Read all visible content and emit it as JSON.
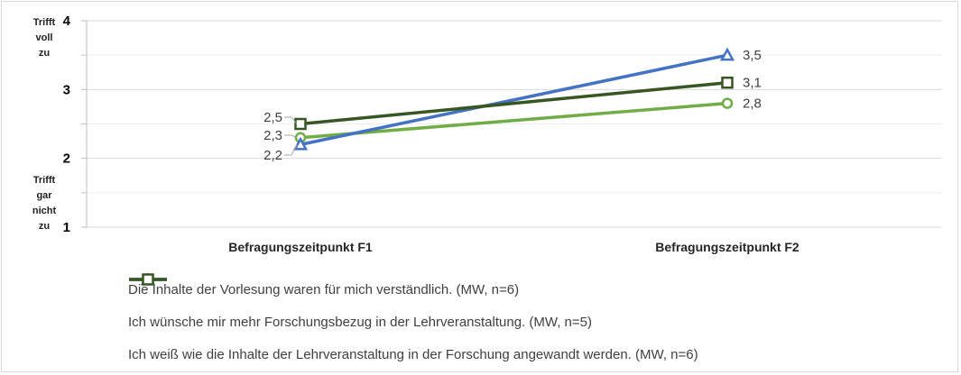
{
  "chart_data": {
    "type": "line",
    "categories": [
      "Befragungszeitpunkt F1",
      "Befragungszeitpunkt F2"
    ],
    "ylim": [
      1,
      4
    ],
    "yticks": [
      1,
      2,
      3,
      4
    ],
    "ytick_labels": [
      "1",
      "2",
      "3",
      "4"
    ],
    "y_top_label": [
      "Trifft",
      "voll",
      "zu"
    ],
    "y_bottom_label": [
      "Trifft",
      "gar",
      "nicht",
      "zu"
    ],
    "grid": "horizontal",
    "legend_position": "bottom",
    "series": [
      {
        "name": "Die Inhalte der Vorlesung waren für mich verständlich. (MW, n=6)",
        "values": [
          2.3,
          2.8
        ],
        "labels": [
          "2,3",
          "2,8"
        ],
        "color": "#70ad47",
        "marker": "circle"
      },
      {
        "name": "Ich wünsche mir mehr Forschungsbezug in der Lehrveranstaltung. (MW, n=5)",
        "values": [
          2.2,
          3.5
        ],
        "labels": [
          "2,2",
          "3,5"
        ],
        "color": "#4472c4",
        "marker": "triangle"
      },
      {
        "name": "Ich weiß wie die Inhalte der Lehrveranstaltung in der Forschung angewandt werden.  (MW, n=6)",
        "values": [
          2.5,
          3.1
        ],
        "labels": [
          "2,5",
          "3,1"
        ],
        "color": "#375623",
        "marker": "square"
      }
    ]
  }
}
